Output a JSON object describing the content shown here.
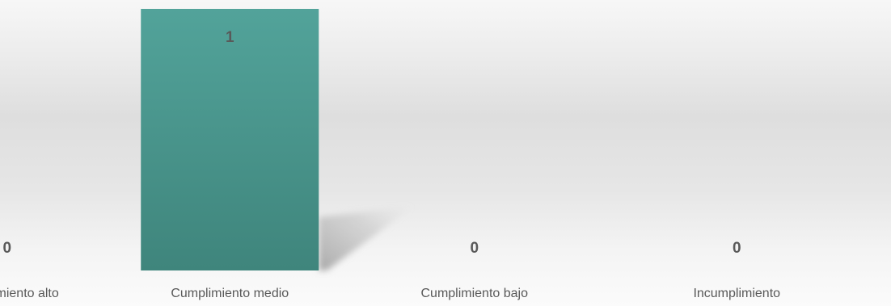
{
  "chart_data": {
    "type": "bar",
    "categories": [
      "Cumplimiento alto",
      "Cumplimiento medio",
      "Cumplimiento bajo",
      "Incumplimiento"
    ],
    "values": [
      0,
      1,
      0,
      0
    ],
    "data_labels": [
      "0",
      "1",
      "0",
      "0"
    ],
    "ylim": [
      0,
      1
    ],
    "grid": false,
    "legend": "none",
    "colors": {
      "bar_top": "#52a39a",
      "bar_bottom": "#3f857c",
      "label_text": "#595959",
      "shadow": "#9a9a9a"
    }
  }
}
